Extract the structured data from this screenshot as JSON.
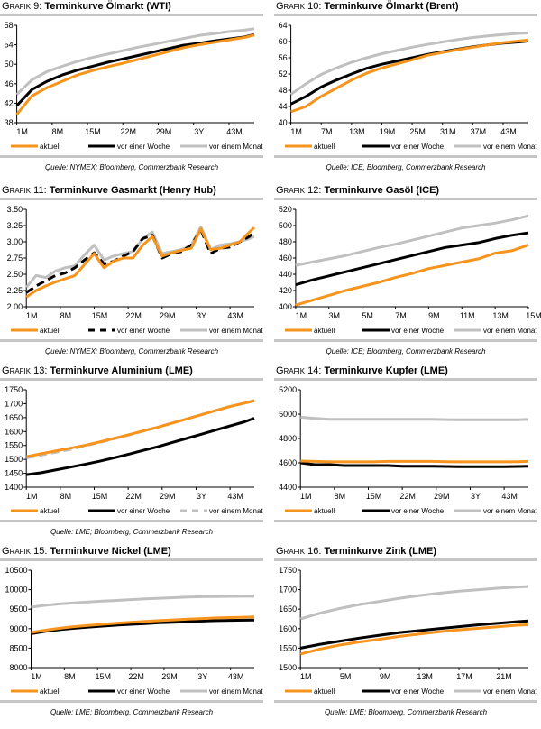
{
  "legend": {
    "current": "aktuell",
    "week": "vor einer Woche",
    "month": "vor einem Monat"
  },
  "colors": {
    "current": "#f7941d",
    "week": "#000000",
    "month": "#c0c0c0"
  },
  "chart_data": [
    {
      "type": "line",
      "label": "Grafik 9:",
      "title": "Terminkurve Ölmarkt (WTI)",
      "source": "Quelle: NYMEX; Bloomberg, Commerzbank Research",
      "ylim": [
        38,
        58
      ],
      "ystep": 4,
      "ydec": 0,
      "xlim": [
        1,
        48
      ],
      "xticks": [
        {
          "x": 1,
          "label": "1M"
        },
        {
          "x": 8,
          "label": "8M"
        },
        {
          "x": 15,
          "label": "15M"
        },
        {
          "x": 22,
          "label": "22M"
        },
        {
          "x": 29,
          "label": "29M"
        },
        {
          "x": 36,
          "label": "3Y"
        },
        {
          "x": 43,
          "label": "43M"
        }
      ],
      "x": [
        1,
        4,
        7,
        10,
        13,
        16,
        19,
        22,
        25,
        28,
        31,
        34,
        37,
        40,
        43,
        46,
        48
      ],
      "series": [
        {
          "key": "current",
          "dash": false,
          "values": [
            39.7,
            43.5,
            45.2,
            46.5,
            47.8,
            48.7,
            49.5,
            50.2,
            51,
            51.8,
            52.6,
            53.4,
            54,
            54.5,
            55,
            55.5,
            56
          ]
        },
        {
          "key": "week",
          "dash": false,
          "values": [
            41.5,
            44.8,
            46.5,
            47.8,
            48.8,
            49.6,
            50.4,
            51.1,
            51.8,
            52.5,
            53.2,
            53.9,
            54.3,
            54.8,
            55.2,
            55.6,
            56.1
          ]
        },
        {
          "key": "month",
          "dash": false,
          "values": [
            43.8,
            46.8,
            48.5,
            49.6,
            50.6,
            51.4,
            52.1,
            52.8,
            53.5,
            54.1,
            54.7,
            55.3,
            55.9,
            56.3,
            56.7,
            57,
            57.3
          ]
        }
      ]
    },
    {
      "type": "line",
      "label": "Grafik 10:",
      "title": "Terminkurve Ölmarkt (Brent)",
      "source": "Quelle: ICE, Bloomberg, Commerzbank Research",
      "ylim": [
        40,
        64
      ],
      "ystep": 4,
      "ydec": 0,
      "xlim": [
        1,
        48
      ],
      "xticks": [
        {
          "x": 1,
          "label": "1M"
        },
        {
          "x": 7,
          "label": "7M"
        },
        {
          "x": 13,
          "label": "13M"
        },
        {
          "x": 19,
          "label": "19M"
        },
        {
          "x": 25,
          "label": "25M"
        },
        {
          "x": 31,
          "label": "31M"
        },
        {
          "x": 37,
          "label": "37M"
        },
        {
          "x": 43,
          "label": "43M"
        }
      ],
      "x": [
        1,
        4,
        7,
        10,
        13,
        16,
        19,
        22,
        25,
        28,
        31,
        34,
        37,
        40,
        43,
        46,
        48
      ],
      "series": [
        {
          "key": "current",
          "dash": false,
          "values": [
            42.7,
            44,
            46.5,
            48.5,
            50.5,
            52.2,
            53.5,
            54.5,
            55.5,
            56.6,
            57.3,
            58,
            58.6,
            59.2,
            59.7,
            60.1,
            60.4
          ]
        },
        {
          "key": "week",
          "dash": false,
          "values": [
            44.6,
            46.5,
            48.8,
            50.5,
            52,
            53.4,
            54.4,
            55.2,
            56,
            56.8,
            57.5,
            58.1,
            58.7,
            59.2,
            59.6,
            59.9,
            60.1
          ]
        },
        {
          "key": "month",
          "dash": false,
          "values": [
            47,
            49.6,
            51.9,
            53.5,
            54.9,
            56,
            57,
            57.8,
            58.6,
            59.3,
            59.9,
            60.5,
            61,
            61.4,
            61.7,
            62,
            62.1
          ]
        }
      ]
    },
    {
      "type": "line",
      "label": "Grafik 11:",
      "title": "Terminkurve Gasmarkt (Henry Hub)",
      "source": "Quelle: NYMEX; Bloomberg, Commerzbank Research",
      "ylim": [
        2.0,
        3.5
      ],
      "ystep": 0.25,
      "ydec": 2,
      "xlim": [
        1,
        48
      ],
      "xticks": [
        {
          "x": 1,
          "label": "1M"
        },
        {
          "x": 8,
          "label": "8M"
        },
        {
          "x": 15,
          "label": "15M"
        },
        {
          "x": 22,
          "label": "22M"
        },
        {
          "x": 29,
          "label": "29M"
        },
        {
          "x": 36,
          "label": "3Y"
        },
        {
          "x": 43,
          "label": "43M"
        }
      ],
      "x": [
        1,
        3,
        5,
        7,
        9,
        11,
        13,
        15,
        17,
        19,
        21,
        23,
        25,
        27,
        29,
        31,
        33,
        35,
        37,
        39,
        41,
        43,
        45,
        47,
        48
      ],
      "series": [
        {
          "key": "current",
          "dash": false,
          "values": [
            2.15,
            2.25,
            2.32,
            2.38,
            2.43,
            2.48,
            2.65,
            2.82,
            2.6,
            2.7,
            2.75,
            2.75,
            2.95,
            3.08,
            2.78,
            2.83,
            2.87,
            2.9,
            3.2,
            2.88,
            2.9,
            2.95,
            3.0,
            3.15,
            3.22
          ]
        },
        {
          "key": "week",
          "dash": true,
          "values": [
            2.22,
            2.32,
            2.4,
            2.48,
            2.52,
            2.6,
            2.72,
            2.83,
            2.66,
            2.7,
            2.78,
            2.85,
            3.05,
            3.1,
            2.75,
            2.82,
            2.85,
            2.95,
            3.18,
            2.82,
            2.9,
            2.92,
            3.0,
            3.08,
            3.15
          ]
        },
        {
          "key": "month",
          "dash": false,
          "values": [
            2.3,
            2.48,
            2.45,
            2.55,
            2.6,
            2.63,
            2.8,
            2.95,
            2.72,
            2.78,
            2.82,
            2.85,
            3.05,
            3.15,
            2.82,
            2.85,
            2.88,
            2.95,
            3.23,
            2.88,
            2.95,
            2.97,
            3.0,
            3.05,
            3.08
          ]
        }
      ]
    },
    {
      "type": "line",
      "label": "Grafik 12:",
      "title": "Terminkurve Gasöl (ICE)",
      "source": "Quelle: ICE; Bloomberg, Commerzbank Research",
      "ylim": [
        400,
        520
      ],
      "ystep": 20,
      "ydec": 0,
      "xlim": [
        1,
        15
      ],
      "xticks": [
        {
          "x": 1,
          "label": "1M"
        },
        {
          "x": 3,
          "label": "3M"
        },
        {
          "x": 5,
          "label": "5M"
        },
        {
          "x": 7,
          "label": "7M"
        },
        {
          "x": 9,
          "label": "9M"
        },
        {
          "x": 11,
          "label": "11M"
        },
        {
          "x": 13,
          "label": "13M"
        },
        {
          "x": 15,
          "label": "15M"
        }
      ],
      "x": [
        1,
        2,
        3,
        4,
        5,
        6,
        7,
        8,
        9,
        10,
        11,
        12,
        13,
        14,
        15
      ],
      "series": [
        {
          "key": "current",
          "dash": false,
          "values": [
            402,
            408,
            414,
            420,
            425,
            430,
            436,
            441,
            447,
            451,
            455,
            459,
            466,
            469,
            476
          ]
        },
        {
          "key": "week",
          "dash": false,
          "values": [
            427,
            433,
            438,
            443,
            448,
            453,
            458,
            463,
            468,
            473,
            476,
            479,
            484,
            488,
            491
          ]
        },
        {
          "key": "month",
          "dash": false,
          "values": [
            451,
            455,
            459,
            463,
            468,
            473,
            477,
            482,
            487,
            492,
            497,
            500,
            503,
            507,
            512
          ]
        }
      ]
    },
    {
      "type": "line",
      "label": "Grafik 13:",
      "title": "Terminkurve Aluminium (LME)",
      "source": "Quelle: LME; Bloomberg, Commerzbank Research",
      "ylim": [
        1400,
        1750
      ],
      "ystep": 50,
      "ydec": 0,
      "xlim": [
        1,
        48
      ],
      "xticks": [
        {
          "x": 1,
          "label": "1M"
        },
        {
          "x": 8,
          "label": "8M"
        },
        {
          "x": 15,
          "label": "15M"
        },
        {
          "x": 22,
          "label": "22M"
        },
        {
          "x": 29,
          "label": "29M"
        },
        {
          "x": 36,
          "label": "3Y"
        },
        {
          "x": 43,
          "label": "43M"
        }
      ],
      "x": [
        1,
        4,
        7,
        10,
        13,
        16,
        19,
        22,
        25,
        28,
        31,
        34,
        37,
        40,
        43,
        46,
        48
      ],
      "series": [
        {
          "key": "current",
          "dash": false,
          "values": [
            1510,
            1520,
            1530,
            1540,
            1550,
            1562,
            1575,
            1588,
            1602,
            1615,
            1630,
            1645,
            1660,
            1675,
            1690,
            1702,
            1710
          ]
        },
        {
          "key": "week",
          "dash": false,
          "values": [
            1445,
            1452,
            1462,
            1472,
            1482,
            1493,
            1505,
            1518,
            1532,
            1545,
            1560,
            1575,
            1590,
            1605,
            1620,
            1635,
            1648
          ]
        },
        {
          "key": "month",
          "dash": true,
          "values": [
            1505,
            1515,
            1525,
            1535,
            1548,
            1560,
            1573,
            1587,
            1601,
            1615,
            1630,
            1645,
            1660,
            1675,
            1690,
            1702,
            1712
          ]
        }
      ]
    },
    {
      "type": "line",
      "label": "Grafik 14:",
      "title": "Terminkurve Kupfer (LME)",
      "source": "",
      "ylim": [
        4400,
        5200
      ],
      "ystep": 200,
      "ydec": 0,
      "xlim": [
        1,
        48
      ],
      "xticks": [
        {
          "x": 1,
          "label": "1M"
        },
        {
          "x": 8,
          "label": "8M"
        },
        {
          "x": 15,
          "label": "15M"
        },
        {
          "x": 22,
          "label": "22M"
        },
        {
          "x": 29,
          "label": "29M"
        },
        {
          "x": 36,
          "label": "3Y"
        },
        {
          "x": 43,
          "label": "43M"
        }
      ],
      "x": [
        1,
        4,
        7,
        10,
        13,
        16,
        19,
        22,
        25,
        28,
        31,
        34,
        37,
        40,
        43,
        46,
        48
      ],
      "series": [
        {
          "key": "current",
          "dash": false,
          "values": [
            4615,
            4612,
            4608,
            4608,
            4608,
            4608,
            4612,
            4612,
            4612,
            4612,
            4610,
            4608,
            4608,
            4608,
            4608,
            4610,
            4612
          ]
        },
        {
          "key": "week",
          "dash": false,
          "values": [
            4600,
            4585,
            4585,
            4578,
            4578,
            4578,
            4578,
            4572,
            4572,
            4572,
            4570,
            4568,
            4568,
            4568,
            4568,
            4570,
            4572
          ]
        },
        {
          "key": "month",
          "dash": false,
          "values": [
            4975,
            4965,
            4958,
            4958,
            4958,
            4958,
            4958,
            4958,
            4958,
            4958,
            4955,
            4953,
            4953,
            4953,
            4953,
            4953,
            4958
          ]
        }
      ]
    },
    {
      "type": "line",
      "label": "Grafik 15:",
      "title": "Terminkurve Nickel (LME)",
      "source": "Quelle: LME; Bloomberg, Commerzbank Research",
      "ylim": [
        8000,
        10500
      ],
      "ystep": 500,
      "ydec": 0,
      "xlim": [
        1,
        48
      ],
      "xticks": [
        {
          "x": 1,
          "label": "1M"
        },
        {
          "x": 8,
          "label": "8M"
        },
        {
          "x": 15,
          "label": "15M"
        },
        {
          "x": 22,
          "label": "22M"
        },
        {
          "x": 29,
          "label": "29M"
        },
        {
          "x": 36,
          "label": "3Y"
        },
        {
          "x": 43,
          "label": "43M"
        }
      ],
      "x": [
        1,
        4,
        7,
        10,
        13,
        16,
        19,
        22,
        25,
        28,
        31,
        34,
        37,
        40,
        43,
        46,
        48
      ],
      "series": [
        {
          "key": "current",
          "dash": false,
          "values": [
            8900,
            8960,
            9010,
            9050,
            9080,
            9110,
            9140,
            9165,
            9185,
            9205,
            9225,
            9245,
            9260,
            9275,
            9285,
            9295,
            9300
          ]
        },
        {
          "key": "week",
          "dash": false,
          "values": [
            8870,
            8930,
            8975,
            9010,
            9040,
            9065,
            9090,
            9110,
            9130,
            9150,
            9165,
            9180,
            9195,
            9205,
            9212,
            9218,
            9220
          ]
        },
        {
          "key": "month",
          "dash": false,
          "values": [
            9550,
            9600,
            9635,
            9660,
            9685,
            9705,
            9725,
            9745,
            9765,
            9780,
            9795,
            9810,
            9820,
            9825,
            9828,
            9830,
            9830
          ]
        }
      ]
    },
    {
      "type": "line",
      "label": "Grafik 16:",
      "title": "Terminkurve Zink (LME)",
      "source": "Quelle: LME; Bloomberg, Commerzbank Research",
      "ylim": [
        1500,
        1750
      ],
      "ystep": 50,
      "ydec": 0,
      "xlim": [
        1,
        24
      ],
      "xticks": [
        {
          "x": 1,
          "label": "1M"
        },
        {
          "x": 5,
          "label": "5M"
        },
        {
          "x": 9,
          "label": "9M"
        },
        {
          "x": 13,
          "label": "13M"
        },
        {
          "x": 17,
          "label": "17M"
        },
        {
          "x": 21,
          "label": "21M"
        }
      ],
      "x": [
        1,
        3,
        5,
        7,
        9,
        11,
        13,
        15,
        17,
        19,
        21,
        23,
        24
      ],
      "series": [
        {
          "key": "current",
          "dash": false,
          "values": [
            1535,
            1548,
            1558,
            1566,
            1573,
            1580,
            1586,
            1592,
            1597,
            1601,
            1605,
            1609,
            1610
          ]
        },
        {
          "key": "week",
          "dash": false,
          "values": [
            1550,
            1560,
            1568,
            1576,
            1583,
            1590,
            1595,
            1600,
            1605,
            1610,
            1614,
            1618,
            1620
          ]
        },
        {
          "key": "month",
          "dash": false,
          "values": [
            1625,
            1640,
            1652,
            1662,
            1670,
            1678,
            1685,
            1691,
            1696,
            1700,
            1704,
            1707,
            1708
          ]
        }
      ]
    }
  ]
}
